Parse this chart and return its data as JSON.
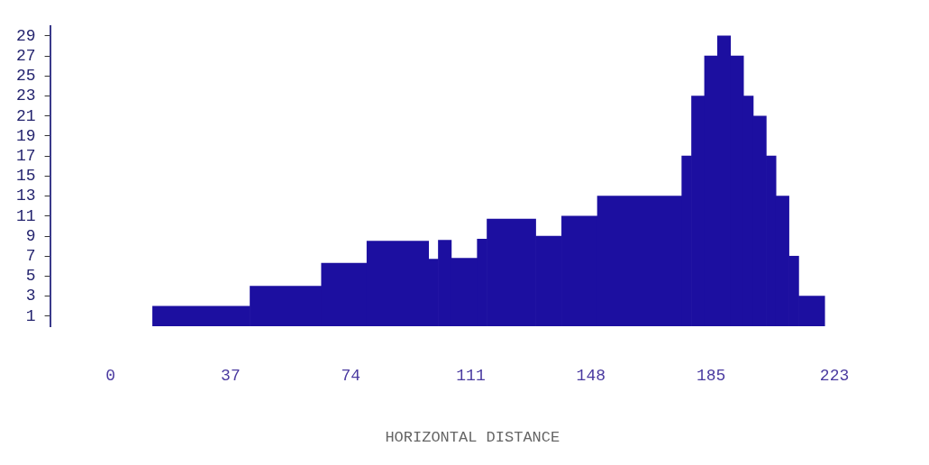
{
  "chart_data": {
    "type": "histogram",
    "xlabel": "HORIZONTAL DISTANCE",
    "bins": [
      13,
      43,
      65,
      79,
      98,
      101,
      105,
      113,
      116,
      131,
      139,
      150,
      176,
      179,
      183,
      187,
      191,
      195,
      198,
      202,
      205,
      209,
      212,
      220
    ],
    "values": [
      2,
      4,
      6.3,
      8.5,
      6.7,
      8.6,
      6.8,
      8.7,
      10.7,
      9,
      11,
      13,
      17,
      23,
      27,
      29,
      27,
      23,
      21,
      17,
      13,
      7,
      3
    ],
    "color": "#1c0fa0",
    "xlim": [
      0,
      223
    ],
    "xticks": [
      0,
      37,
      74,
      111,
      148,
      185,
      223
    ],
    "ylim": [
      0,
      30
    ],
    "yticks": [
      1,
      3,
      5,
      7,
      9,
      11,
      13,
      15,
      17,
      19,
      21,
      23,
      25,
      27,
      29
    ],
    "grid": false,
    "legend": false
  }
}
